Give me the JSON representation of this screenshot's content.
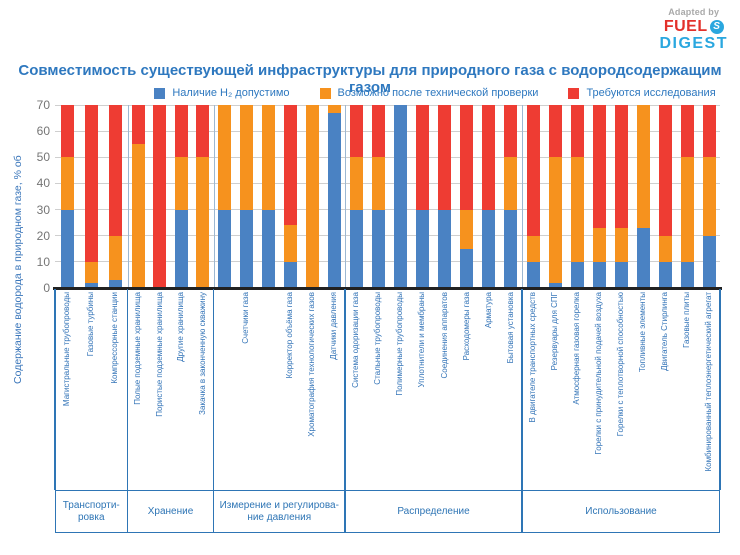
{
  "logo": {
    "adapted_by": "Adapted by",
    "fuel": "FUEL",
    "digest": "DIGEST",
    "icon_letter": "S",
    "colors": {
      "fuel": "#e3312b",
      "digest": "#2aa7df",
      "adapted_by": "#a9a9a9"
    }
  },
  "title": "Совместимость существующей инфраструктуры для природного газа с водородсодержащим газом",
  "legend": [
    {
      "label": "Наличие H₂ допустимо",
      "color": "#4a82c3"
    },
    {
      "label": "Возможно после технической проверки",
      "color": "#f6921e"
    },
    {
      "label": "Требуются исследования",
      "color": "#ee3c33"
    }
  ],
  "chart_data": {
    "type": "bar",
    "stacked": true,
    "title": "Совместимость существующей инфраструктуры для природного газа с водородсодержащим газом",
    "ylabel": "Содержание водорода в природном газе, % об",
    "ylim": [
      0,
      70
    ],
    "yticks": [
      0,
      10,
      20,
      30,
      40,
      50,
      60,
      70
    ],
    "grid": "horizontal",
    "legend_position": "top",
    "series_names": [
      "Наличие H₂ допустимо",
      "Возможно после технической проверки",
      "Требуются исследования"
    ],
    "groups": [
      {
        "name": "Транспорти-\nровка",
        "bars": [
          {
            "label": "Магистральные трубопроводы",
            "values": [
              30,
              20,
              20
            ]
          },
          {
            "label": "Газовые турбины",
            "values": [
              2,
              8,
              60
            ]
          },
          {
            "label": "Компрессорные станции",
            "values": [
              3,
              17,
              50
            ]
          }
        ]
      },
      {
        "name": "Хранение",
        "bars": [
          {
            "label": "Полые подземные хранилища",
            "values": [
              0,
              55,
              15
            ]
          },
          {
            "label": "Пористые подземные хранилища",
            "values": [
              0,
              0,
              70
            ]
          },
          {
            "label": "Другие хранилища",
            "values": [
              30,
              20,
              20
            ]
          },
          {
            "label": "Закачка в законченную скважину",
            "values": [
              0,
              50,
              20
            ]
          }
        ]
      },
      {
        "name": "Измерение и регулирова-\nние давления",
        "bars": [
          {
            "label": "",
            "values": [
              30,
              40,
              0
            ]
          },
          {
            "label": "Счетчики газа",
            "values": [
              30,
              40,
              0
            ]
          },
          {
            "label": "",
            "values": [
              30,
              40,
              0
            ]
          },
          {
            "label": "Корректор объёма газа",
            "values": [
              10,
              14,
              46
            ]
          },
          {
            "label": "Хроматография технологических газов",
            "values": [
              0,
              70,
              0
            ]
          },
          {
            "label": "Датчики давления",
            "values": [
              67,
              3,
              0
            ]
          }
        ]
      },
      {
        "name": "Распределение",
        "bars": [
          {
            "label": "Система одоризации газа",
            "values": [
              30,
              20,
              20
            ]
          },
          {
            "label": "Стальные трубопроводы",
            "values": [
              30,
              20,
              20
            ]
          },
          {
            "label": "Полимерные трубопроводы",
            "values": [
              70,
              0,
              0
            ]
          },
          {
            "label": "Уплотнители и мембраны",
            "values": [
              30,
              0,
              40
            ]
          },
          {
            "label": "Соединения аппаратов",
            "values": [
              30,
              0,
              40
            ]
          },
          {
            "label": "Расходомеры газа",
            "values": [
              15,
              15,
              40
            ]
          },
          {
            "label": "Арматура",
            "values": [
              30,
              0,
              40
            ]
          },
          {
            "label": "Бытовая установка",
            "values": [
              30,
              20,
              20
            ]
          }
        ]
      },
      {
        "name": "Использование",
        "bars": [
          {
            "label": "В двигателе транспортных средств",
            "values": [
              10,
              10,
              50
            ]
          },
          {
            "label": "Резервуары для СПГ",
            "values": [
              2,
              48,
              20
            ]
          },
          {
            "label": "Атмосферная газовая горелка",
            "values": [
              10,
              40,
              20
            ]
          },
          {
            "label": "Горелки с принудительной подачей воздуха",
            "values": [
              10,
              13,
              47
            ]
          },
          {
            "label": "Горелки с теплотворной способностью",
            "values": [
              10,
              13,
              47
            ]
          },
          {
            "label": "Топливные элементы",
            "values": [
              23,
              47,
              0
            ]
          },
          {
            "label": "Двигатель Стирлинга",
            "values": [
              10,
              10,
              50
            ]
          },
          {
            "label": "Газовые плиты",
            "values": [
              10,
              40,
              20
            ]
          },
          {
            "label": "Комбинированный теплоэнергетический агрегат",
            "values": [
              20,
              30,
              20
            ]
          }
        ]
      }
    ]
  }
}
